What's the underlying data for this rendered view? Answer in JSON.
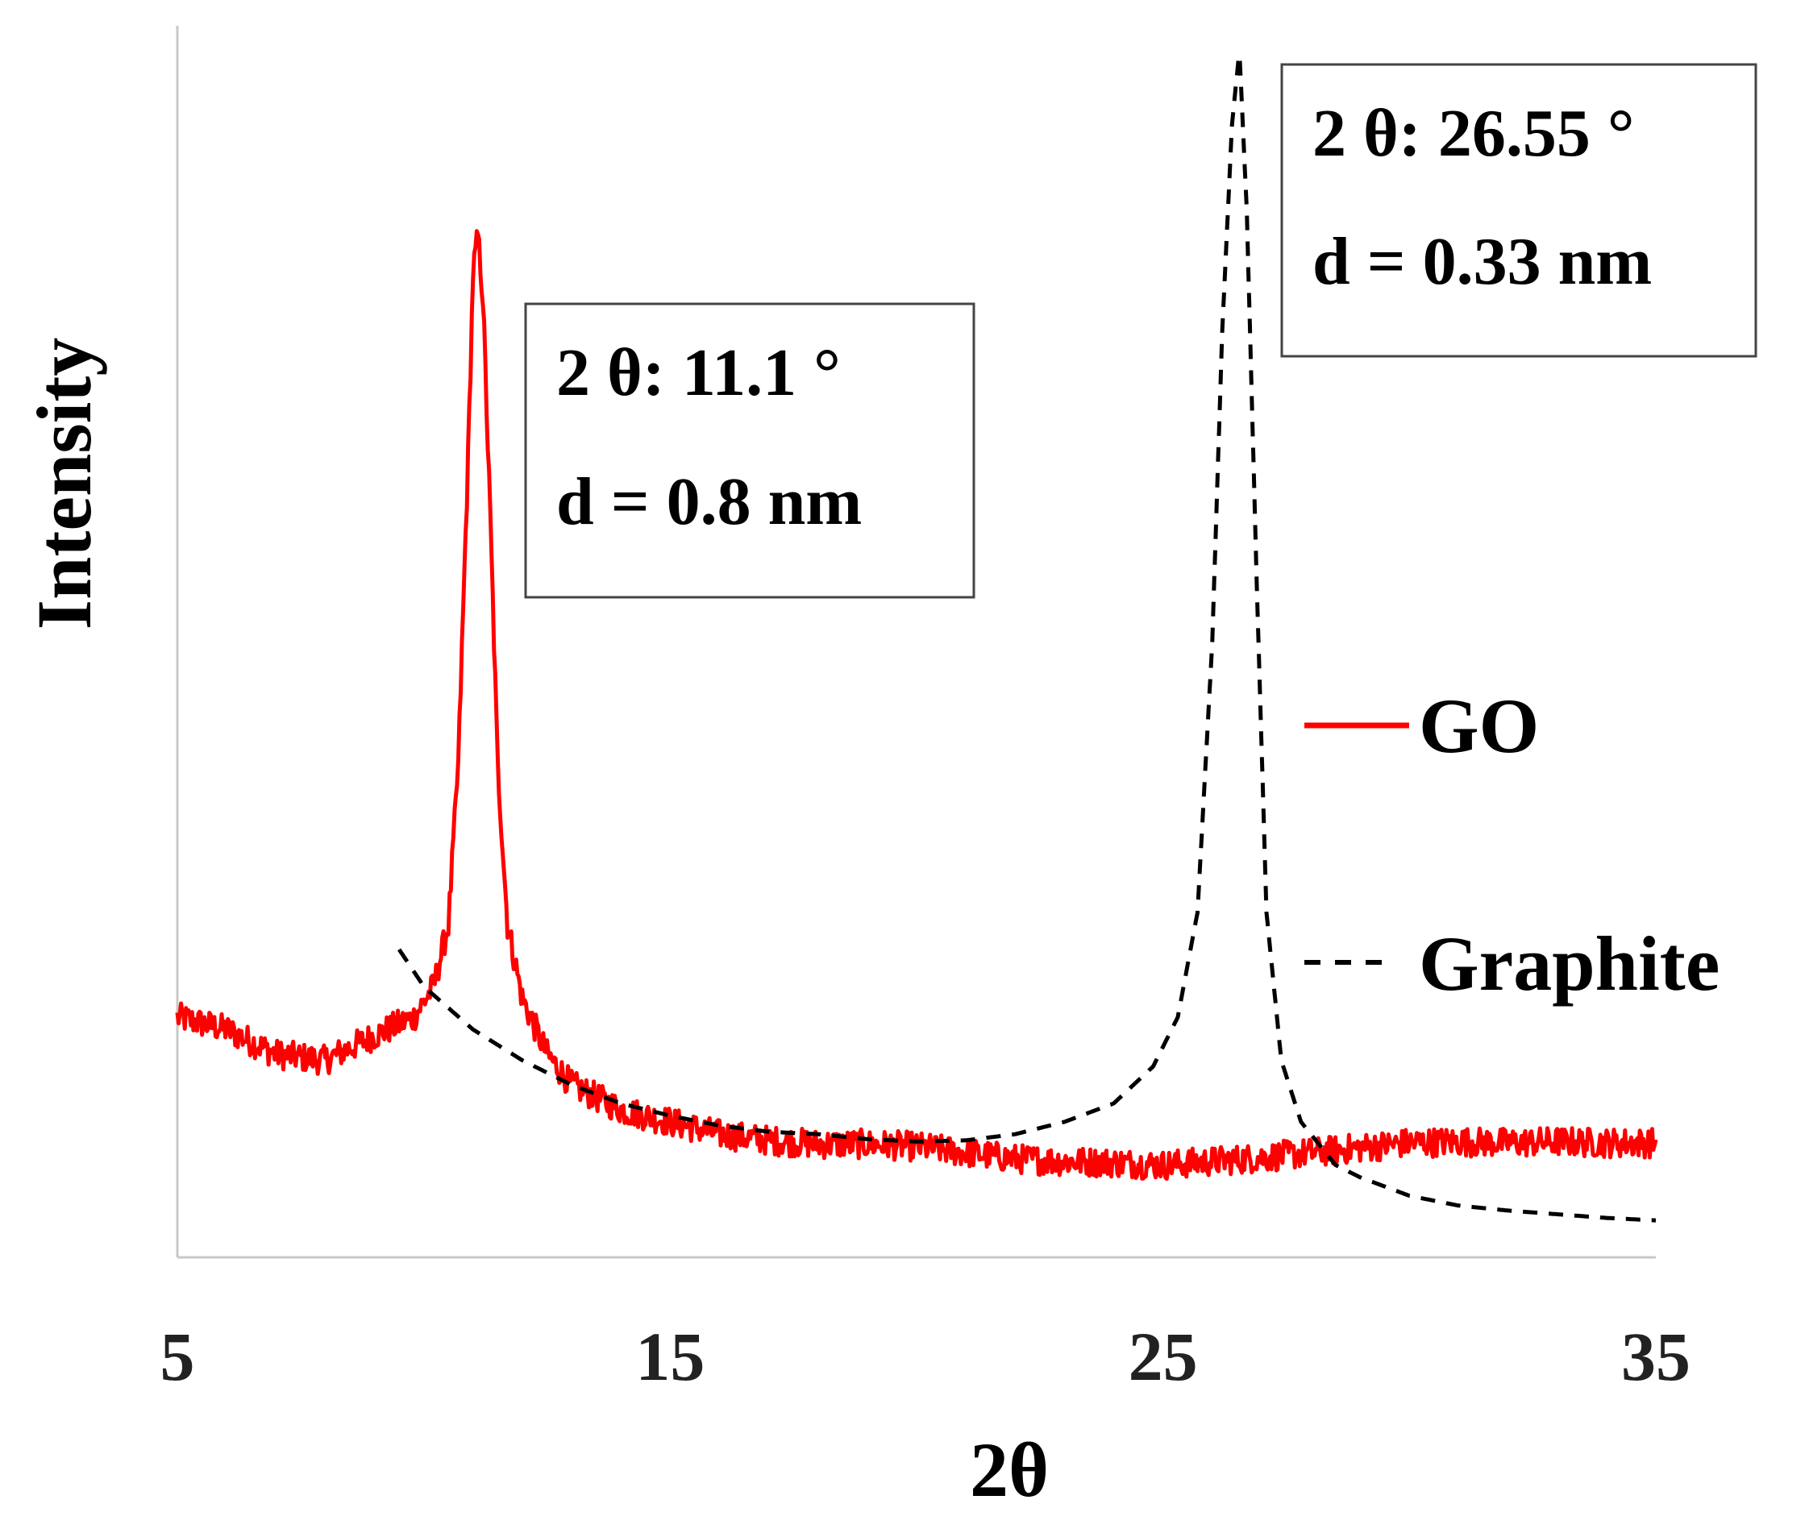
{
  "chart_data": {
    "type": "line",
    "title": "",
    "xlabel": "2θ",
    "ylabel": "Intensity",
    "xlim": [
      5,
      35
    ],
    "ylim": [
      0,
      100
    ],
    "x_ticks": [
      5,
      15,
      25,
      35
    ],
    "x_tick_labels": [
      "5",
      "15",
      "25",
      "35"
    ],
    "y_ticks_shown": false,
    "grid": false,
    "legend_position": "right",
    "series": [
      {
        "name": "GO",
        "color": "#ff0000",
        "style": "solid",
        "noise": 1.2,
        "points": [
          [
            5.0,
            19.5
          ],
          [
            6.0,
            18.5
          ],
          [
            7.0,
            16.5
          ],
          [
            8.0,
            16.0
          ],
          [
            9.0,
            18.0
          ],
          [
            9.8,
            19.5
          ],
          [
            10.2,
            22.0
          ],
          [
            10.5,
            27.0
          ],
          [
            10.7,
            40.0
          ],
          [
            10.9,
            65.0
          ],
          [
            11.0,
            80.0
          ],
          [
            11.1,
            83.0
          ],
          [
            11.2,
            78.0
          ],
          [
            11.35,
            60.0
          ],
          [
            11.5,
            40.0
          ],
          [
            11.7,
            27.0
          ],
          [
            12.0,
            21.0
          ],
          [
            12.5,
            16.5
          ],
          [
            13.0,
            14.0
          ],
          [
            14.0,
            12.0
          ],
          [
            15.0,
            11.0
          ],
          [
            16.0,
            10.0
          ],
          [
            17.0,
            9.5
          ],
          [
            18.0,
            9.2
          ],
          [
            19.0,
            9.2
          ],
          [
            20.0,
            9.0
          ],
          [
            21.0,
            8.5
          ],
          [
            22.0,
            8.0
          ],
          [
            23.0,
            7.8
          ],
          [
            24.0,
            7.7
          ],
          [
            25.0,
            7.5
          ],
          [
            26.0,
            7.8
          ],
          [
            27.0,
            8.1
          ],
          [
            28.0,
            8.5
          ],
          [
            29.0,
            8.9
          ],
          [
            30.0,
            9.3
          ],
          [
            31.0,
            9.4
          ],
          [
            32.0,
            9.3
          ],
          [
            33.0,
            9.4
          ],
          [
            34.0,
            9.3
          ],
          [
            35.0,
            9.3
          ]
        ]
      },
      {
        "name": "Graphite",
        "color": "#000000",
        "style": "dashed",
        "points": [
          [
            9.5,
            25.0
          ],
          [
            10.0,
            22.0
          ],
          [
            11.0,
            18.5
          ],
          [
            12.0,
            16.0
          ],
          [
            13.0,
            14.0
          ],
          [
            14.0,
            12.5
          ],
          [
            15.0,
            11.5
          ],
          [
            16.0,
            10.7
          ],
          [
            17.0,
            10.2
          ],
          [
            18.0,
            10.0
          ],
          [
            19.0,
            9.6
          ],
          [
            20.0,
            9.4
          ],
          [
            21.0,
            9.5
          ],
          [
            22.0,
            10.0
          ],
          [
            23.0,
            11.0
          ],
          [
            24.0,
            12.5
          ],
          [
            24.8,
            15.5
          ],
          [
            25.3,
            19.5
          ],
          [
            25.7,
            28.0
          ],
          [
            26.0,
            50.0
          ],
          [
            26.2,
            75.0
          ],
          [
            26.4,
            92.0
          ],
          [
            26.55,
            98.0
          ],
          [
            26.7,
            85.0
          ],
          [
            26.9,
            55.0
          ],
          [
            27.1,
            28.0
          ],
          [
            27.4,
            16.0
          ],
          [
            27.8,
            11.0
          ],
          [
            28.5,
            7.5
          ],
          [
            29.0,
            6.5
          ],
          [
            30.0,
            5.0
          ],
          [
            31.0,
            4.2
          ],
          [
            32.0,
            3.8
          ],
          [
            33.0,
            3.5
          ],
          [
            34.0,
            3.2
          ],
          [
            35.0,
            3.0
          ]
        ]
      }
    ],
    "annotations": [
      {
        "line1": "2 θ: 11.1 °",
        "line2": "d = 0.8 nm"
      },
      {
        "line1": "2 θ: 26.55 °",
        "line2": "d = 0.33 nm"
      }
    ]
  }
}
